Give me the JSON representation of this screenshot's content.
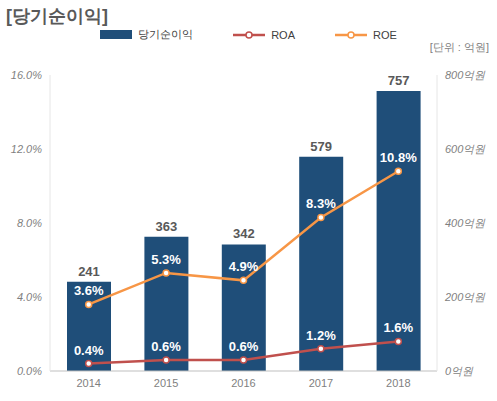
{
  "chart_data": {
    "type": "bar",
    "title": "[당기순이익]",
    "annotations": [
      "[단위 : 억원]"
    ],
    "categories": [
      "2014",
      "2015",
      "2016",
      "2017",
      "2018"
    ],
    "series": [
      {
        "name": "당기순이익",
        "type": "bar",
        "axis": "y2",
        "color": "#1f4e79",
        "values": [
          241,
          363,
          342,
          579,
          757
        ]
      },
      {
        "name": "ROA",
        "type": "line",
        "color": "#c0504d",
        "marker": "circle",
        "values": [
          0.4,
          0.6,
          0.6,
          1.2,
          1.6
        ],
        "value_labels": [
          "0.4%",
          "0.6%",
          "0.6%",
          "1.2%",
          "1.6%"
        ]
      },
      {
        "name": "ROE",
        "type": "line",
        "color": "#f79646",
        "marker": "circle",
        "values": [
          3.6,
          5.3,
          4.9,
          8.3,
          10.8
        ],
        "value_labels": [
          "3.6%",
          "5.3%",
          "4.9%",
          "8.3%",
          "10.8%"
        ]
      }
    ],
    "ylim": [
      0,
      16
    ],
    "yticks": [
      {
        "value": 0,
        "label": "0.0%"
      },
      {
        "value": 4,
        "label": "4.0%"
      },
      {
        "value": 8,
        "label": "8.0%"
      },
      {
        "value": 12,
        "label": "12.0%"
      },
      {
        "value": 16,
        "label": "16.0%"
      }
    ],
    "y2lim": [
      0,
      800
    ],
    "y2ticks": [
      {
        "value": 0,
        "label": "0억원"
      },
      {
        "value": 200,
        "label": "200억원"
      },
      {
        "value": 400,
        "label": "400억원"
      },
      {
        "value": 600,
        "label": "600억원"
      },
      {
        "value": 800,
        "label": "800억원"
      }
    ],
    "grid": false,
    "legend": "top",
    "data_labels": true
  }
}
